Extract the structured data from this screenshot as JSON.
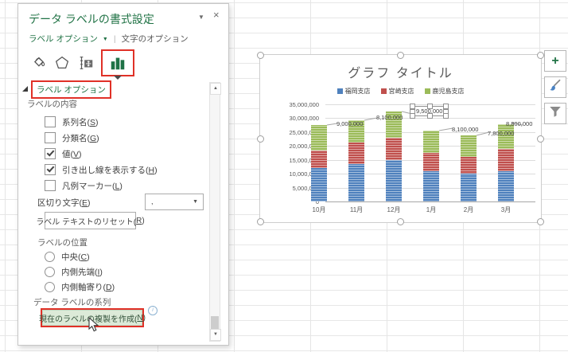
{
  "pane": {
    "title": "データ ラベルの書式設定",
    "window": {
      "menu_glyph": "▼",
      "close_glyph": "×"
    },
    "tabs": [
      {
        "label": "ラベル オプション",
        "arrow": "▼",
        "active": true
      },
      {
        "label": "文字のオプション",
        "active": false
      }
    ],
    "icon_tabs": [
      {
        "name": "fill-and-line"
      },
      {
        "name": "effects"
      },
      {
        "name": "size-and-properties"
      },
      {
        "name": "label-options-chart",
        "selected": true
      }
    ],
    "section_header": "ラベル オプション",
    "label_content_group": "ラベルの内容",
    "checkboxes": [
      {
        "label": "系列名(S)",
        "checked": false
      },
      {
        "label": "分類名(G)",
        "checked": false
      },
      {
        "label": "値(V)",
        "checked": true
      },
      {
        "label": "引き出し線を表示する(H)",
        "checked": true
      },
      {
        "label": "凡例マーカー(L)",
        "checked": false
      }
    ],
    "separator": {
      "label": "区切り文字(E)",
      "value": ","
    },
    "reset_button": "ラベル テキストのリセット(R)",
    "position_group": "ラベルの位置",
    "radios": [
      {
        "label": "中央(C)",
        "selected": false
      },
      {
        "label": "内側先端(I)",
        "selected": false
      },
      {
        "label": "内側軸寄り(D)",
        "selected": false
      }
    ],
    "series_group": "データ ラベルの系列",
    "clone_button": "現在のラベルの複製を作成(N)",
    "info_glyph": "i"
  },
  "icons": {
    "scroll_up": "▲",
    "scroll_down": "▼",
    "dropdown_arrow": "▼",
    "plus": "+"
  },
  "chart_data": {
    "type": "bar",
    "stacked": true,
    "title": "グラフ タイトル",
    "categories": [
      "10月",
      "11月",
      "12月",
      "1月",
      "2月",
      "3月"
    ],
    "series": [
      {
        "name": "福岡支店",
        "color": "#4f81bd",
        "values": [
          12000000,
          13500000,
          15000000,
          11000000,
          10000000,
          11000000
        ]
      },
      {
        "name": "宮崎支店",
        "color": "#c0504d",
        "values": [
          6500000,
          7800000,
          8000000,
          6500000,
          6000000,
          8000000
        ]
      },
      {
        "name": "鹿児島支店",
        "color": "#9bbb59",
        "values": [
          9000000,
          8100000,
          9500000,
          8100000,
          7800000,
          8800000
        ]
      }
    ],
    "data_labels": {
      "series": "鹿児島支店",
      "values": [
        "9,000,000",
        "8,100,000",
        "9,500,000",
        "8,100,000",
        "7,800,000",
        "8,800,000"
      ],
      "selected_index": 2
    },
    "ylim": [
      0,
      35000000
    ],
    "ytick_step": 5000000,
    "legend_position": "top",
    "grid": true
  }
}
